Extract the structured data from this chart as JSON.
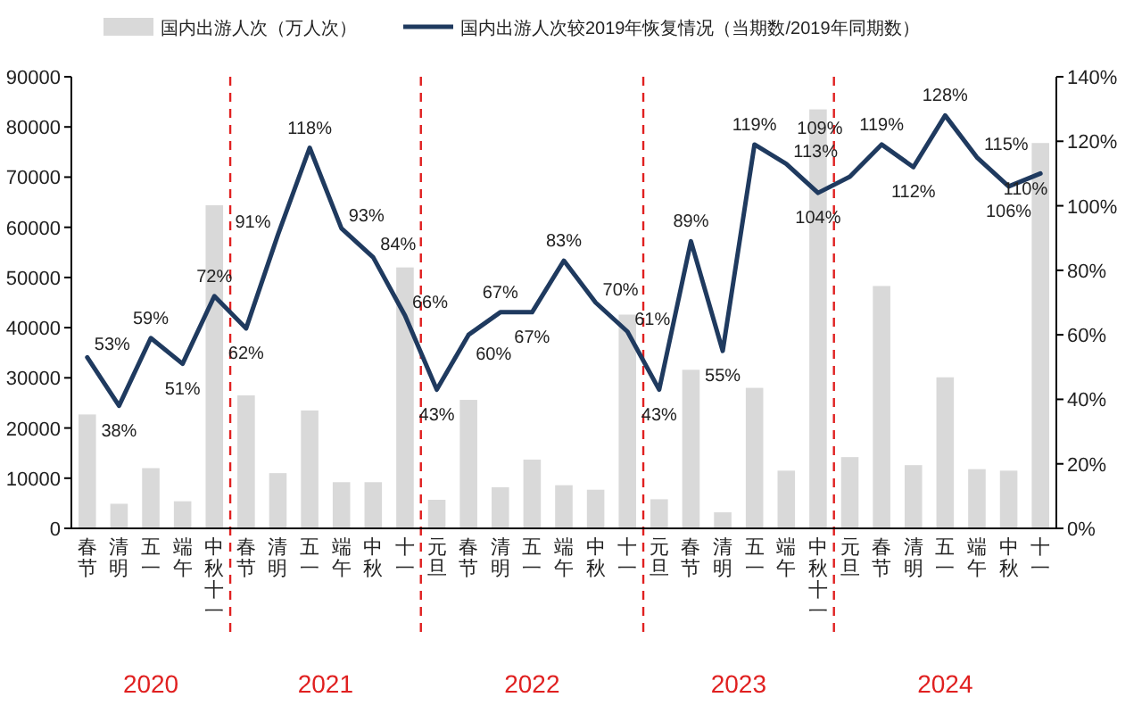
{
  "chart_data": {
    "type": "bar",
    "categories": [
      "春节",
      "清明",
      "五一",
      "端午",
      "中秋十一",
      "春节",
      "清明",
      "五一",
      "端午",
      "中秋",
      "十一",
      "元旦",
      "春节",
      "清明",
      "五一",
      "端午",
      "中秋",
      "十一",
      "元旦",
      "春节",
      "清明",
      "五一",
      "端午",
      "中秋十一",
      "元旦",
      "春节",
      "清明",
      "五一",
      "端午",
      "中秋",
      "十一"
    ],
    "series": [
      {
        "name": "国内出游人次（万人次）",
        "color": "#d9d9d9",
        "values": [
          22700,
          4900,
          12000,
          5400,
          64400,
          26500,
          11000,
          23500,
          9200,
          9200,
          52000,
          5700,
          25600,
          8200,
          13700,
          8600,
          7700,
          42600,
          5800,
          31600,
          3200,
          28000,
          11500,
          83500,
          14200,
          48300,
          12600,
          30100,
          11800,
          11500,
          76800
        ]
      },
      {
        "name": "国内出游人次较2019年恢复情况（当期数/2019年同期数）",
        "type": "line",
        "axis": "y2",
        "color": "#1f3a5f",
        "values": [
          53,
          38,
          59,
          51,
          72,
          62,
          91,
          118,
          93,
          84,
          66,
          43,
          60,
          67,
          67,
          83,
          70,
          61,
          43,
          89,
          55,
          119,
          113,
          104,
          109,
          119,
          112,
          128,
          115,
          106,
          110
        ],
        "value_labels": [
          "53%",
          "38%",
          "59%",
          "51%",
          "72%",
          "62%",
          "91%",
          "118%",
          "93%",
          "84%",
          "66%",
          "43%",
          "60%",
          "67%",
          "67%",
          "83%",
          "70%",
          "61%",
          "43%",
          "89%",
          "55%",
          "119%",
          "113%",
          "104%",
          "109%",
          "119%",
          "112%",
          "128%",
          "115%",
          "106%",
          "110%"
        ]
      }
    ],
    "ylim": [
      0,
      90000
    ],
    "yticks": [
      0,
      10000,
      20000,
      30000,
      40000,
      50000,
      60000,
      70000,
      80000,
      90000
    ],
    "y2lim": [
      0,
      140
    ],
    "y2ticks": [
      {
        "value": 0,
        "label": "0%"
      },
      {
        "value": 20,
        "label": "20%"
      },
      {
        "value": 40,
        "label": "40%"
      },
      {
        "value": 60,
        "label": "60%"
      },
      {
        "value": 80,
        "label": "80%"
      },
      {
        "value": 100,
        "label": "100%"
      },
      {
        "value": 120,
        "label": "120%"
      },
      {
        "value": 140,
        "label": "140%"
      }
    ],
    "annotations": [
      "2020",
      "2021",
      "2022",
      "2023",
      "2024"
    ],
    "legend": "top",
    "grid": false
  }
}
